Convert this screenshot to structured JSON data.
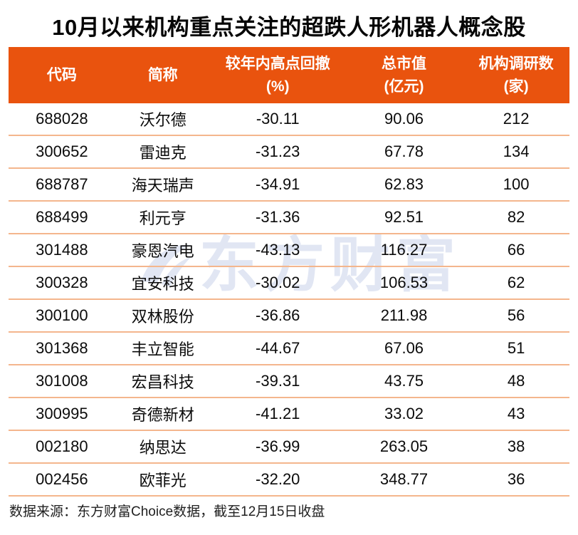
{
  "page": {
    "title": "10月以来机构重点关注的超跌人形机器人概念股",
    "watermark_text": "东方财富",
    "source_note": "数据来源：东方财富Choice数据，截至12月15日收盘"
  },
  "colors": {
    "header_bg": "#E9530E",
    "header_text": "#FFFFFF",
    "row_divider": "#F4B68D",
    "title_text": "#050505",
    "body_text": "#0B0B0B",
    "source_text": "#1F1F1F",
    "watermark": "#DCE2F2"
  },
  "table": {
    "headers": [
      {
        "lines": [
          "代码"
        ]
      },
      {
        "lines": [
          "简称"
        ]
      },
      {
        "lines": [
          "较年内高点回撤",
          "(%)"
        ]
      },
      {
        "lines": [
          "总市值",
          "(亿元)"
        ]
      },
      {
        "lines": [
          "机构调研数",
          "(家)"
        ]
      }
    ],
    "rows": [
      [
        "688028",
        "沃尔德",
        "-30.11",
        "90.06",
        "212"
      ],
      [
        "300652",
        "雷迪克",
        "-31.23",
        "67.78",
        "134"
      ],
      [
        "688787",
        "海天瑞声",
        "-34.91",
        "62.83",
        "100"
      ],
      [
        "688499",
        "利元亨",
        "-31.36",
        "92.51",
        "82"
      ],
      [
        "301488",
        "豪恩汽电",
        "-43.13",
        "116.27",
        "66"
      ],
      [
        "300328",
        "宜安科技",
        "-30.02",
        "106.53",
        "62"
      ],
      [
        "300100",
        "双林股份",
        "-36.86",
        "211.98",
        "56"
      ],
      [
        "301368",
        "丰立智能",
        "-44.67",
        "67.06",
        "51"
      ],
      [
        "301008",
        "宏昌科技",
        "-39.31",
        "43.75",
        "48"
      ],
      [
        "300995",
        "奇德新材",
        "-41.21",
        "33.02",
        "43"
      ],
      [
        "002180",
        "纳思达",
        "-36.99",
        "263.05",
        "38"
      ],
      [
        "002456",
        "欧菲光",
        "-32.20",
        "348.77",
        "36"
      ]
    ]
  },
  "chart_data": {
    "type": "table",
    "title": "10月以来机构重点关注的超跌人形机器人概念股",
    "columns": [
      "代码",
      "简称",
      "较年内高点回撤(%)",
      "总市值(亿元)",
      "机构调研数(家)"
    ],
    "rows": [
      [
        "688028",
        "沃尔德",
        -30.11,
        90.06,
        212
      ],
      [
        "300652",
        "雷迪克",
        -31.23,
        67.78,
        134
      ],
      [
        "688787",
        "海天瑞声",
        -34.91,
        62.83,
        100
      ],
      [
        "688499",
        "利元亨",
        -31.36,
        92.51,
        82
      ],
      [
        "301488",
        "豪恩汽电",
        -43.13,
        116.27,
        66
      ],
      [
        "300328",
        "宜安科技",
        -30.02,
        106.53,
        62
      ],
      [
        "300100",
        "双林股份",
        -36.86,
        211.98,
        56
      ],
      [
        "301368",
        "丰立智能",
        -44.67,
        67.06,
        51
      ],
      [
        "301008",
        "宏昌科技",
        -39.31,
        43.75,
        48
      ],
      [
        "300995",
        "奇德新材",
        -41.21,
        33.02,
        43
      ],
      [
        "002180",
        "纳思达",
        -36.99,
        263.05,
        38
      ],
      [
        "002456",
        "欧菲光",
        -32.2,
        348.77,
        36
      ]
    ],
    "source_note": "数据来源：东方财富Choice数据，截至12月15日收盘",
    "watermark": "东方财富"
  }
}
